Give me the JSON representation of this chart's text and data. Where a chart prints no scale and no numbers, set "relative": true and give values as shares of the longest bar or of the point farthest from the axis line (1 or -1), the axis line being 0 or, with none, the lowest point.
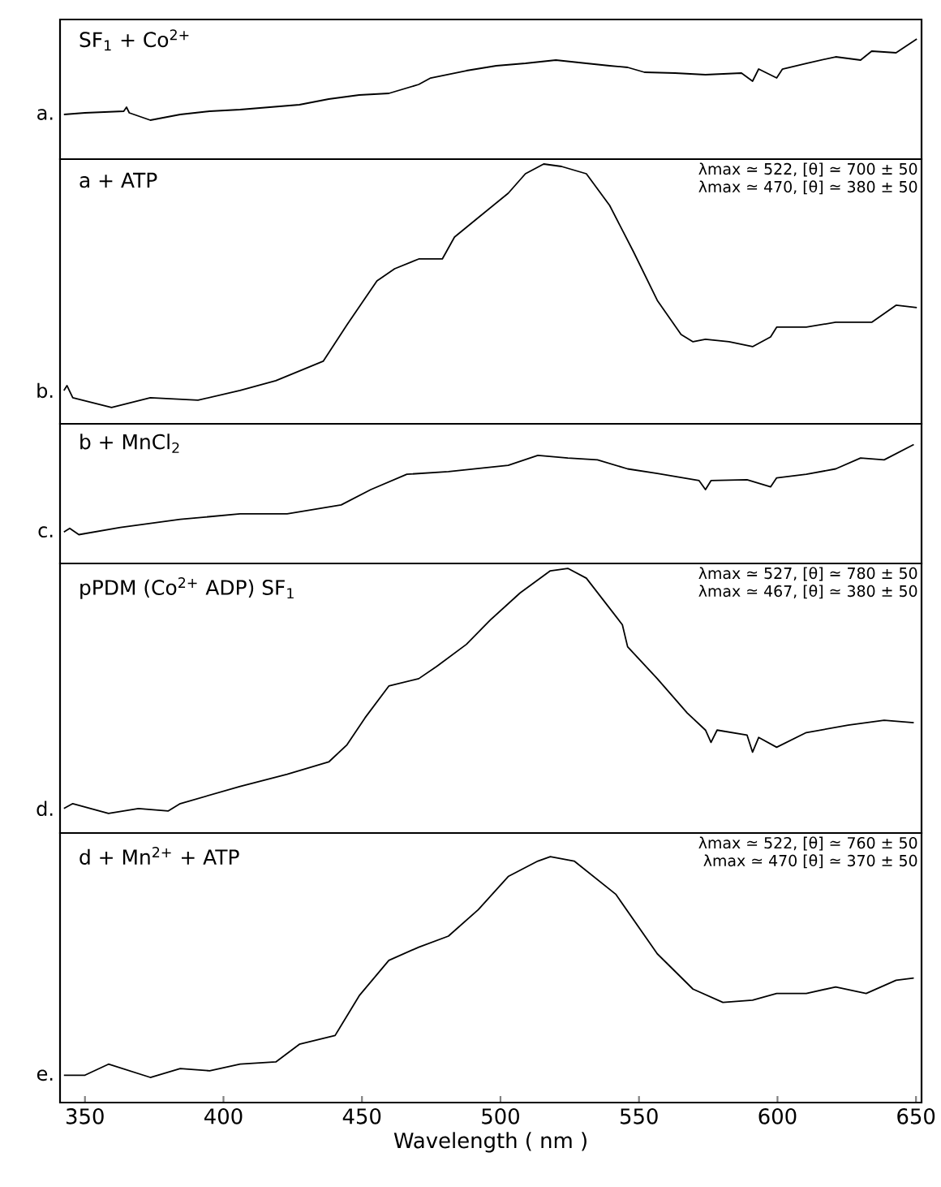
{
  "chart_data": [
    {
      "type": "line",
      "relative": true,
      "title": "SF$_{1}$ + Co$^{2+}$",
      "xlim": [
        341,
        652
      ],
      "tick_labels": false,
      "x": [
        342.4,
        350,
        364,
        365,
        366,
        373.6,
        384.4,
        395,
        406,
        416.7,
        427.4,
        438,
        449,
        459.7,
        470.5,
        474.8,
        487.7,
        498.5,
        509,
        520,
        531,
        539.4,
        545.9,
        552,
        563,
        574,
        587,
        591,
        593.2,
        599.7,
        601.8,
        610.4,
        621,
        630,
        634,
        642.8,
        650.3
      ],
      "series": [
        {
          "name": "a.",
          "color": "#000000",
          "values": [
            0.07,
            0.09,
            0.11,
            0.16,
            0.09,
            0,
            0.07,
            0.11,
            0.13,
            0.16,
            0.19,
            0.26,
            0.31,
            0.33,
            0.44,
            0.52,
            0.61,
            0.67,
            0.7,
            0.74,
            0.7,
            0.67,
            0.65,
            0.59,
            0.58,
            0.56,
            0.58,
            0.48,
            0.63,
            0.52,
            0.63,
            0.7,
            0.78,
            0.74,
            0.85,
            0.83,
            1
          ]
        }
      ]
    },
    {
      "type": "line",
      "relative": true,
      "title": "a + ATP",
      "xlim": [
        341,
        652
      ],
      "tick_labels": false,
      "annotations": [
        "λmax ≃ 522, [θ] ≃ 700 ± 50",
        "λmax ≃ 470, [θ] ≃ 380 ± 50"
      ],
      "x": [
        342.4,
        343.5,
        345.6,
        359.6,
        373.6,
        390.8,
        406,
        418.9,
        429.6,
        436,
        444.6,
        455.4,
        461.8,
        470.5,
        479,
        483.4,
        492,
        502.8,
        509,
        515.6,
        522,
        531,
        539.4,
        548,
        556.6,
        565.2,
        569.5,
        574,
        582.5,
        591,
        597.5,
        599.7,
        610.4,
        621,
        634,
        642.8,
        650.3
      ],
      "series": [
        {
          "name": "b.",
          "color": "#000000",
          "values": [
            0.07,
            0.09,
            0.04,
            0,
            0.04,
            0.03,
            0.07,
            0.11,
            0.16,
            0.19,
            0.34,
            0.52,
            0.57,
            0.61,
            0.61,
            0.7,
            0.78,
            0.88,
            0.96,
            1,
            0.99,
            0.96,
            0.83,
            0.64,
            0.44,
            0.3,
            0.27,
            0.28,
            0.27,
            0.25,
            0.29,
            0.33,
            0.33,
            0.35,
            0.35,
            0.42,
            0.41
          ]
        }
      ]
    },
    {
      "type": "line",
      "relative": true,
      "title": "b + MnCl$_{2}$",
      "xlim": [
        341,
        652
      ],
      "tick_labels": false,
      "x": [
        342.4,
        344.5,
        347.8,
        362.8,
        384.4,
        406,
        423,
        442.5,
        453.2,
        466.2,
        481.2,
        502.8,
        513.5,
        524.3,
        535,
        545.9,
        556.6,
        571.7,
        574,
        576,
        589,
        597.5,
        599.7,
        610.4,
        621,
        630,
        638.5,
        649.2
      ],
      "series": [
        {
          "name": "c.",
          "color": "#000000",
          "values": [
            0.03,
            0.07,
            0,
            0.08,
            0.17,
            0.23,
            0.23,
            0.33,
            0.5,
            0.67,
            0.7,
            0.77,
            0.88,
            0.85,
            0.83,
            0.73,
            0.68,
            0.6,
            0.5,
            0.6,
            0.61,
            0.53,
            0.63,
            0.67,
            0.73,
            0.85,
            0.83,
            1
          ]
        }
      ]
    },
    {
      "type": "line",
      "relative": true,
      "title": "pPDM (Co$^{2+}$ ADP) SF$_{1}$",
      "xlim": [
        341,
        652
      ],
      "tick_labels": false,
      "annotations": [
        "λmax ≃ 527, [θ] ≃ 780 ± 50",
        "λmax ≃ 467, [θ] ≃ 380 ± 50"
      ],
      "x": [
        342.4,
        345.6,
        358.5,
        369.3,
        380.1,
        384.4,
        406,
        423,
        438,
        444.6,
        451.1,
        459.7,
        470.5,
        477,
        487.7,
        496.4,
        507.1,
        518,
        524.3,
        531,
        544,
        545.9,
        556.6,
        567.4,
        574,
        576,
        578.2,
        589,
        591,
        593.2,
        599.7,
        610.4,
        625.5,
        638.5,
        649.2
      ],
      "series": [
        {
          "name": "d.",
          "color": "#000000",
          "values": [
            0.02,
            0.04,
            0,
            0.02,
            0.01,
            0.04,
            0.11,
            0.16,
            0.21,
            0.28,
            0.39,
            0.52,
            0.55,
            0.6,
            0.69,
            0.79,
            0.9,
            0.99,
            1,
            0.96,
            0.77,
            0.68,
            0.55,
            0.41,
            0.34,
            0.29,
            0.34,
            0.32,
            0.25,
            0.31,
            0.27,
            0.33,
            0.36,
            0.38,
            0.37
          ]
        }
      ]
    },
    {
      "type": "line",
      "relative": true,
      "title": "d + Mn$^{2+}$ + ATP",
      "xlabel": "Wavelength ( nm )",
      "xlim": [
        341,
        652
      ],
      "xticks": [
        350,
        400,
        450,
        500,
        550,
        600,
        650
      ],
      "tick_labels": "x",
      "annotations": [
        "λmax ≃ 522, [θ] ≃ 760 ± 50",
        "λmax ≃ 470 [θ] ≃ 370 ± 50"
      ],
      "x": [
        342.4,
        350,
        358.5,
        373.6,
        384.4,
        395,
        406,
        418.9,
        427.4,
        440.3,
        449,
        459.7,
        470.5,
        481.2,
        492,
        502.8,
        513.5,
        518,
        526.6,
        541.6,
        556.6,
        569.5,
        580.3,
        591,
        599.7,
        610.4,
        621,
        632,
        642.8,
        649.2
      ],
      "series": [
        {
          "name": "e.",
          "color": "#000000",
          "values": [
            0.01,
            0.01,
            0.06,
            0,
            0.04,
            0.03,
            0.06,
            0.07,
            0.15,
            0.19,
            0.37,
            0.53,
            0.59,
            0.64,
            0.76,
            0.91,
            0.98,
            1,
            0.98,
            0.83,
            0.56,
            0.4,
            0.34,
            0.35,
            0.38,
            0.38,
            0.41,
            0.38,
            0.44,
            0.45
          ]
        }
      ]
    }
  ]
}
